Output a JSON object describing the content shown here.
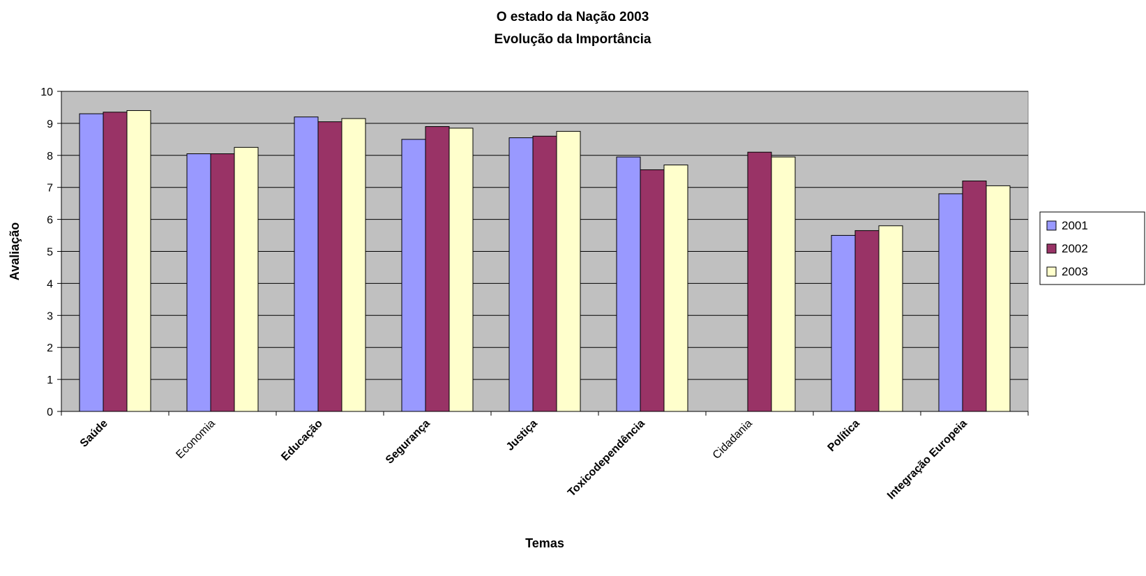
{
  "chart_data": {
    "type": "bar",
    "title": "O estado da Nação 2003",
    "subtitle": "Evolução da Importância",
    "xlabel": "Temas",
    "ylabel": "Avaliação",
    "ylim": [
      0,
      10
    ],
    "yticks": [
      "0",
      "1",
      "2",
      "3",
      "4",
      "5",
      "6",
      "7",
      "8",
      "9",
      "10"
    ],
    "grid": true,
    "legend_position": "right",
    "categories": [
      "Saúde",
      "Economia",
      "Educação",
      "Segurança",
      "Justiça",
      "Toxicodependência",
      "Cidadania",
      "Política",
      "Integração Europeia"
    ],
    "bold_categories": [
      true,
      false,
      true,
      true,
      true,
      true,
      false,
      true,
      true
    ],
    "series": [
      {
        "name": "2001",
        "color": "#9999ff",
        "values": [
          9.3,
          8.05,
          9.2,
          8.5,
          8.55,
          7.95,
          null,
          5.5,
          6.8
        ]
      },
      {
        "name": "2002",
        "color": "#993366",
        "values": [
          9.35,
          8.05,
          9.05,
          8.9,
          8.6,
          7.55,
          8.1,
          5.65,
          7.2
        ]
      },
      {
        "name": "2003",
        "color": "#ffffcc",
        "values": [
          9.4,
          8.25,
          9.15,
          8.85,
          8.75,
          7.7,
          7.95,
          5.8,
          7.05
        ]
      }
    ],
    "plot_background": "#c0c0c0"
  }
}
